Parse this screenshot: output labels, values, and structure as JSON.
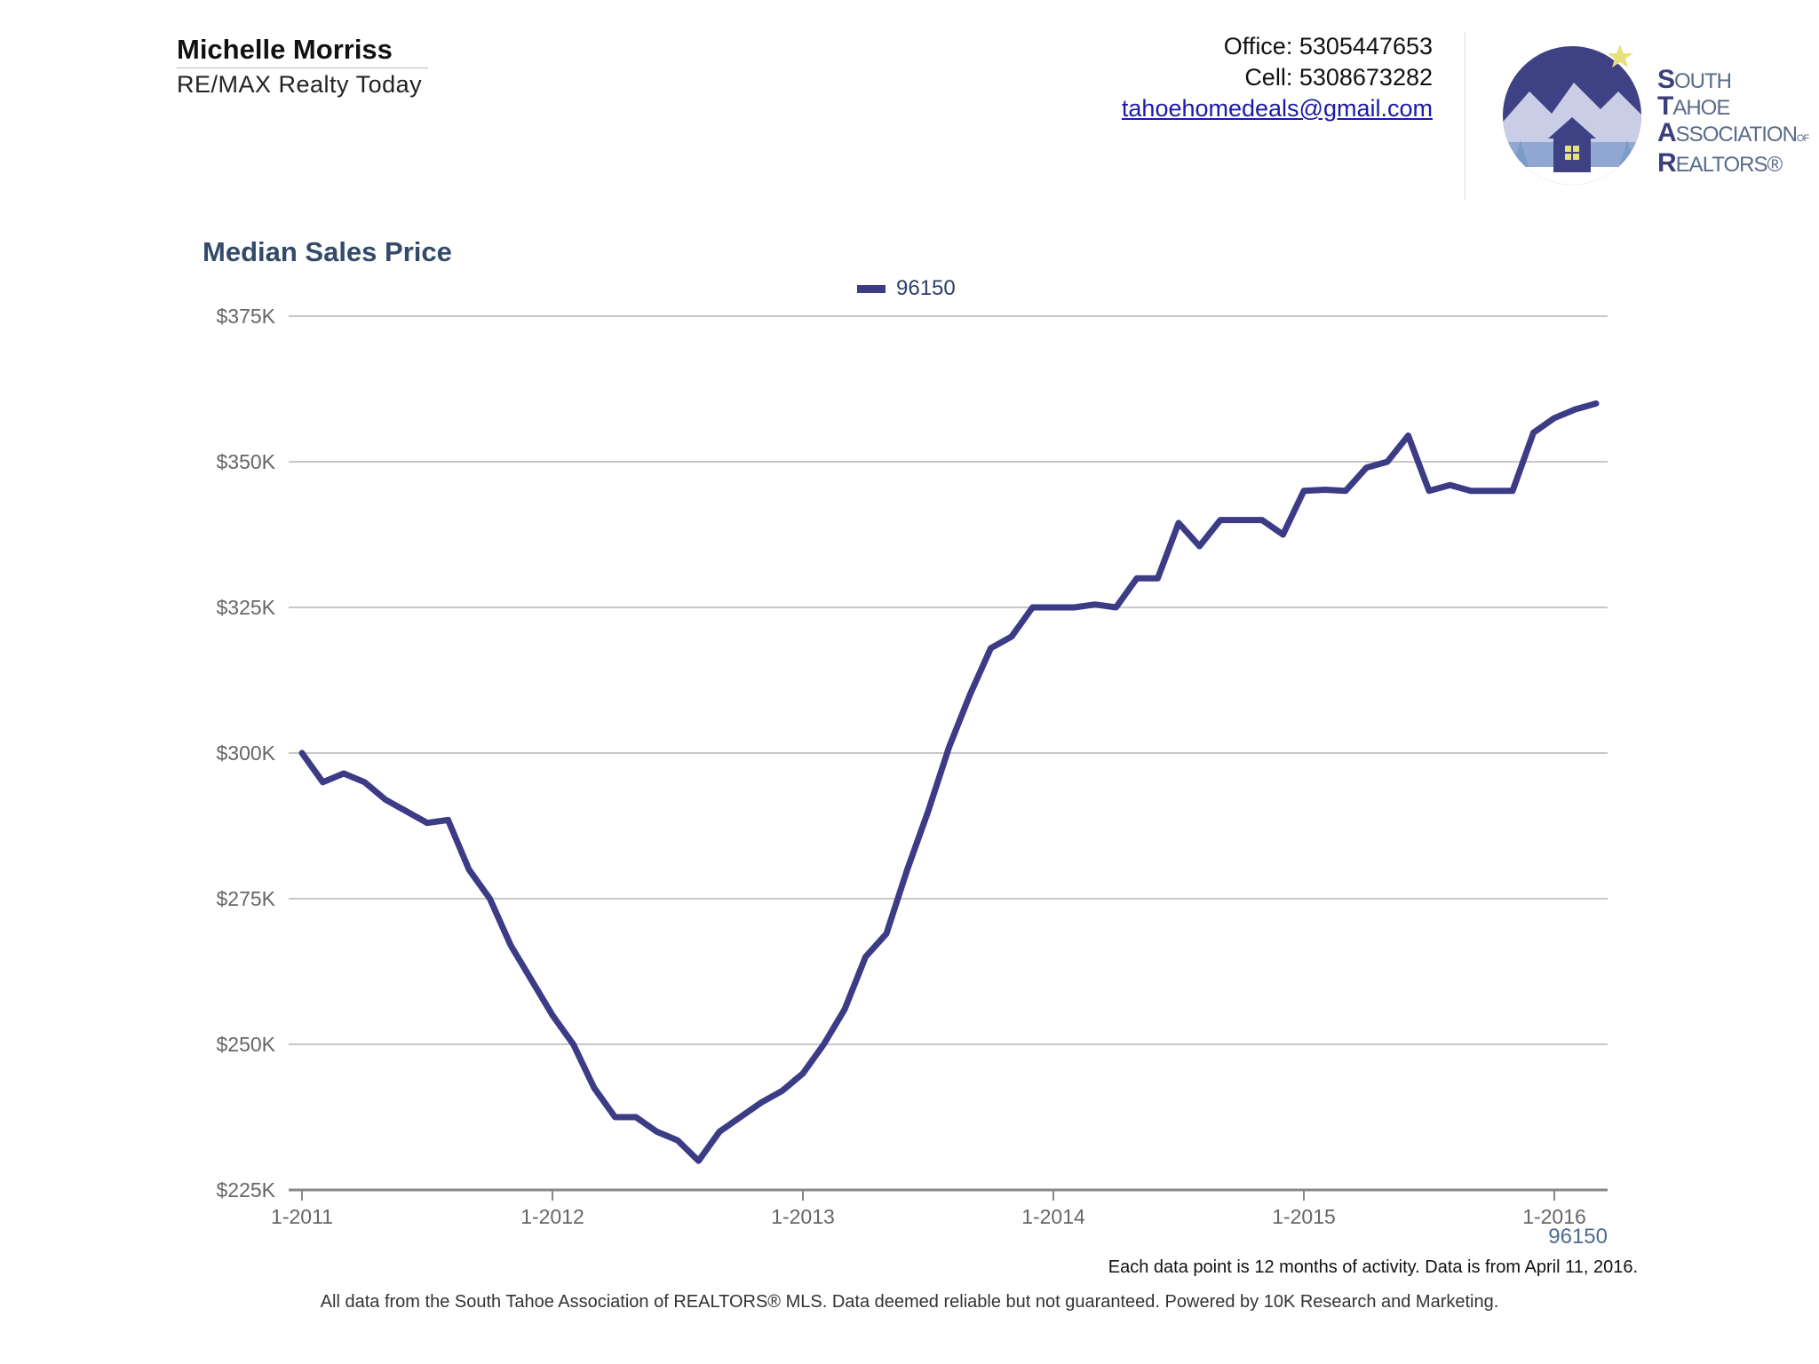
{
  "header": {
    "agent_name": "Michelle Morriss",
    "company": "RE/MAX Realty Today",
    "office": "Office: 5305447653",
    "cell": "Cell: 5308673282",
    "email": "tahoehomedeals@gmail.com"
  },
  "logo": {
    "line1_big": "S",
    "line1_rest": "OUTH",
    "line2_big": "T",
    "line2_rest": "AHOE",
    "line3_big": "A",
    "line3_rest": "SSOCIATION",
    "line3_small": "OF",
    "line4_big": "R",
    "line4_rest": "EALTORS®",
    "icon": "mountain-house-logo",
    "colors": {
      "circle": "#3f4185",
      "star": "#e8e07a",
      "mountain": "#c9cde6",
      "trees": "#7c9cc8"
    }
  },
  "chart_data": {
    "type": "line",
    "title": "Median Sales Price",
    "legend_position": "top-center",
    "series": [
      {
        "name": "96150",
        "color": "#3b3b86",
        "values": [
          300000,
          295000,
          296500,
          295000,
          292000,
          290000,
          288000,
          288500,
          280000,
          275000,
          267000,
          261000,
          255000,
          250000,
          242500,
          237500,
          237500,
          235000,
          233500,
          230000,
          235000,
          237500,
          240000,
          242000,
          245000,
          250000,
          256000,
          265000,
          269000,
          280000,
          290000,
          301000,
          310000,
          318000,
          320000,
          325000,
          325000,
          325000,
          325500,
          325000,
          330000,
          330000,
          339500,
          335500,
          340000,
          340000,
          340000,
          337500,
          345000,
          345200,
          345000,
          349000,
          350000,
          354500,
          345000,
          346000,
          345000,
          345000,
          345000,
          355000,
          357500,
          359000,
          360000
        ]
      }
    ],
    "x_start": "1-2011",
    "x_step": "1 month",
    "x_ticks": [
      "1-2011",
      "1-2012",
      "1-2013",
      "1-2014",
      "1-2015",
      "1-2016"
    ],
    "y_ticks": [
      "$225K",
      "$250K",
      "$275K",
      "$300K",
      "$325K",
      "$350K",
      "$375K"
    ],
    "ylim": [
      225000,
      375000
    ],
    "grid": true,
    "series_caption": "96150"
  },
  "notes": {
    "data_note": "Each data point is 12 months of activity. Data is from April 11, 2016.",
    "footer": "All data from the South Tahoe Association of REALTORS® MLS. Data deemed reliable but not guaranteed. Powered by 10K Research and Marketing."
  }
}
